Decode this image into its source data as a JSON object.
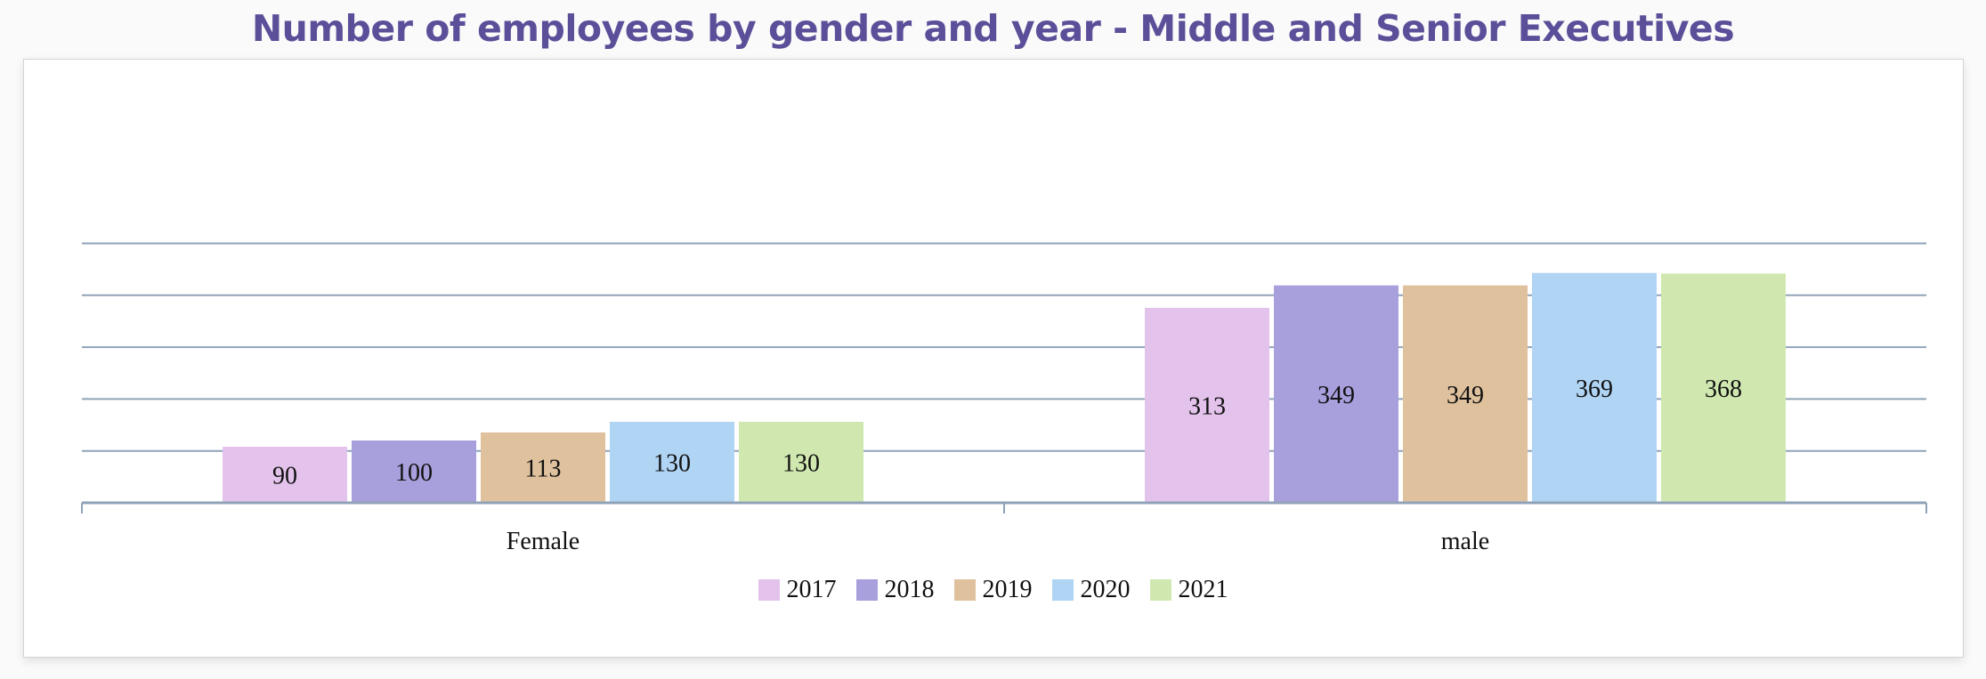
{
  "chart_data": {
    "type": "bar",
    "title": "Number of employees by gender and year - Middle and Senior Executives",
    "xlabel": "",
    "ylabel": "",
    "categories": [
      "Female",
      "male"
    ],
    "series": [
      {
        "name": "2017",
        "color": "#e3c3ec",
        "values": [
          90,
          313
        ]
      },
      {
        "name": "2018",
        "color": "#a89fdd",
        "values": [
          100,
          349
        ]
      },
      {
        "name": "2019",
        "color": "#dfc19e",
        "values": [
          113,
          349
        ]
      },
      {
        "name": "2020",
        "color": "#b0d4f4",
        "values": [
          130,
          369
        ]
      },
      {
        "name": "2021",
        "color": "#d0e8b0",
        "values": [
          130,
          368
        ]
      }
    ],
    "ylim": [
      0,
      450
    ],
    "grid": true,
    "legend": "bottom-center",
    "data_labels": true
  }
}
